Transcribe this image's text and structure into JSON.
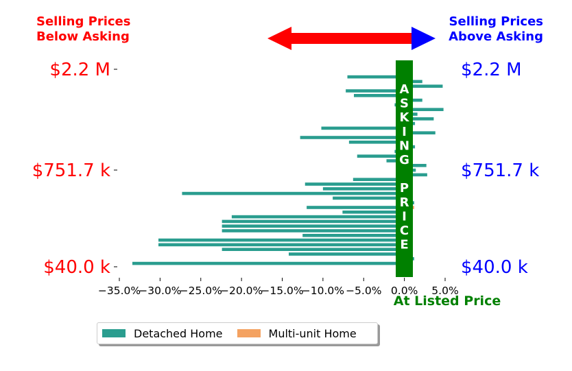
{
  "chart_data": {
    "type": "bar",
    "orientation": "horizontal",
    "header_left": [
      "Selling Prices",
      "Below Asking"
    ],
    "header_right": [
      "Selling Prices",
      "Above Asking"
    ],
    "center_text": [
      "A",
      "S",
      "K",
      "I",
      "N",
      "G",
      "",
      "P",
      "R",
      "I",
      "C",
      "E"
    ],
    "at_listed_label": "At Listed Price",
    "xlim": [
      -35,
      5
    ],
    "x_ticks": [
      -35,
      -30,
      -25,
      -20,
      -15,
      -10,
      -5,
      0,
      5
    ],
    "x_tick_labels": [
      "−35.0%",
      "−30.0%",
      "−25.0%",
      "−20.0%",
      "−15.0%",
      "−10.0%",
      "−5.0%",
      "0.0%",
      "5.0%"
    ],
    "y_tick_labels_left": [
      "$2.2 M",
      "$751.7 k",
      "$40.0 k"
    ],
    "y_tick_labels_right": [
      "$2.2 M",
      "$751.7 k",
      "$40.0 k"
    ],
    "legend_placement": "bottom-left",
    "colors": {
      "detached": "#2a9d8f",
      "multi_unit": "#f4a261",
      "below": "#ff0000",
      "above": "#0000ff",
      "asking_band": "#008000"
    },
    "series": [
      {
        "name": "Detached Home",
        "values": [
          -1.0,
          -7.0,
          2.2,
          4.7,
          -7.2,
          -6.2,
          2.2,
          -1.2,
          4.8,
          1.6,
          3.6,
          1.3,
          -10.2,
          3.8,
          -12.8,
          -6.8,
          1.3,
          -1.2,
          -5.8,
          -2.2,
          2.7,
          1.4,
          2.8,
          -6.3,
          -12.2,
          -10.0,
          -27.3,
          -8.8,
          1.2,
          -12.0,
          -7.6,
          -21.2,
          -22.4,
          -22.4,
          -22.4,
          -12.5,
          -30.2,
          -30.2,
          -22.4,
          -14.2,
          1.2,
          -33.4
        ]
      },
      {
        "name": "Multi-unit Home",
        "values": [
          0,
          0,
          0,
          0,
          0,
          0,
          0,
          0,
          0,
          0,
          0,
          0,
          0,
          0,
          0,
          0,
          0,
          0,
          0,
          0,
          0,
          0,
          0,
          0,
          0,
          0,
          0,
          0,
          0,
          1.2,
          0,
          0,
          0,
          0,
          0,
          0,
          0,
          0,
          0,
          0,
          0,
          0
        ]
      }
    ]
  }
}
